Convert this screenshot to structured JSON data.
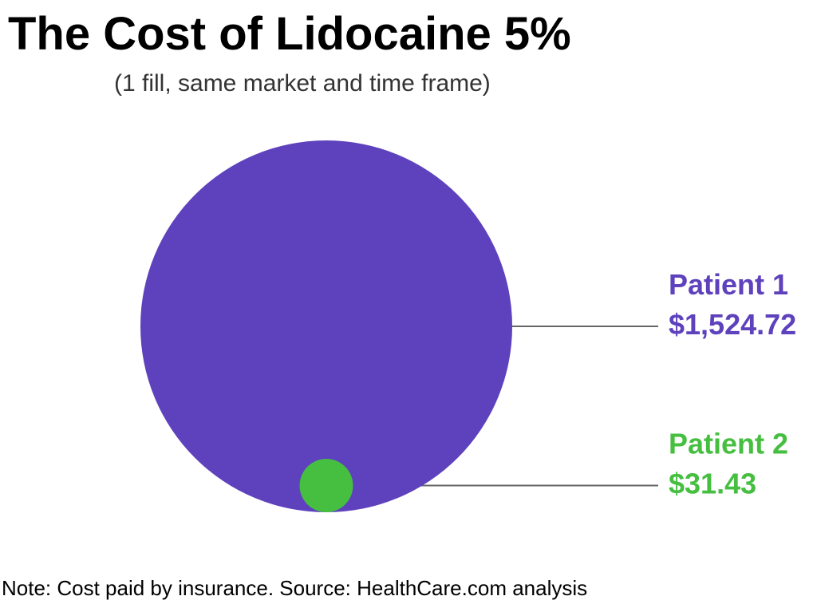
{
  "chart_data": {
    "type": "bubble",
    "title": "The Cost of Lidocaine 5%",
    "subtitle": "(1 fill, same market and time frame)",
    "note": "Note: Cost paid by insurance. Source: HealthCare.com analysis",
    "categories": [
      "Patient 1",
      "Patient 2"
    ],
    "values": [
      1524.72,
      31.43
    ],
    "value_labels": [
      "$1,524.72",
      "$31.43"
    ],
    "colors": [
      "#5e41bd",
      "#46bf41"
    ]
  }
}
